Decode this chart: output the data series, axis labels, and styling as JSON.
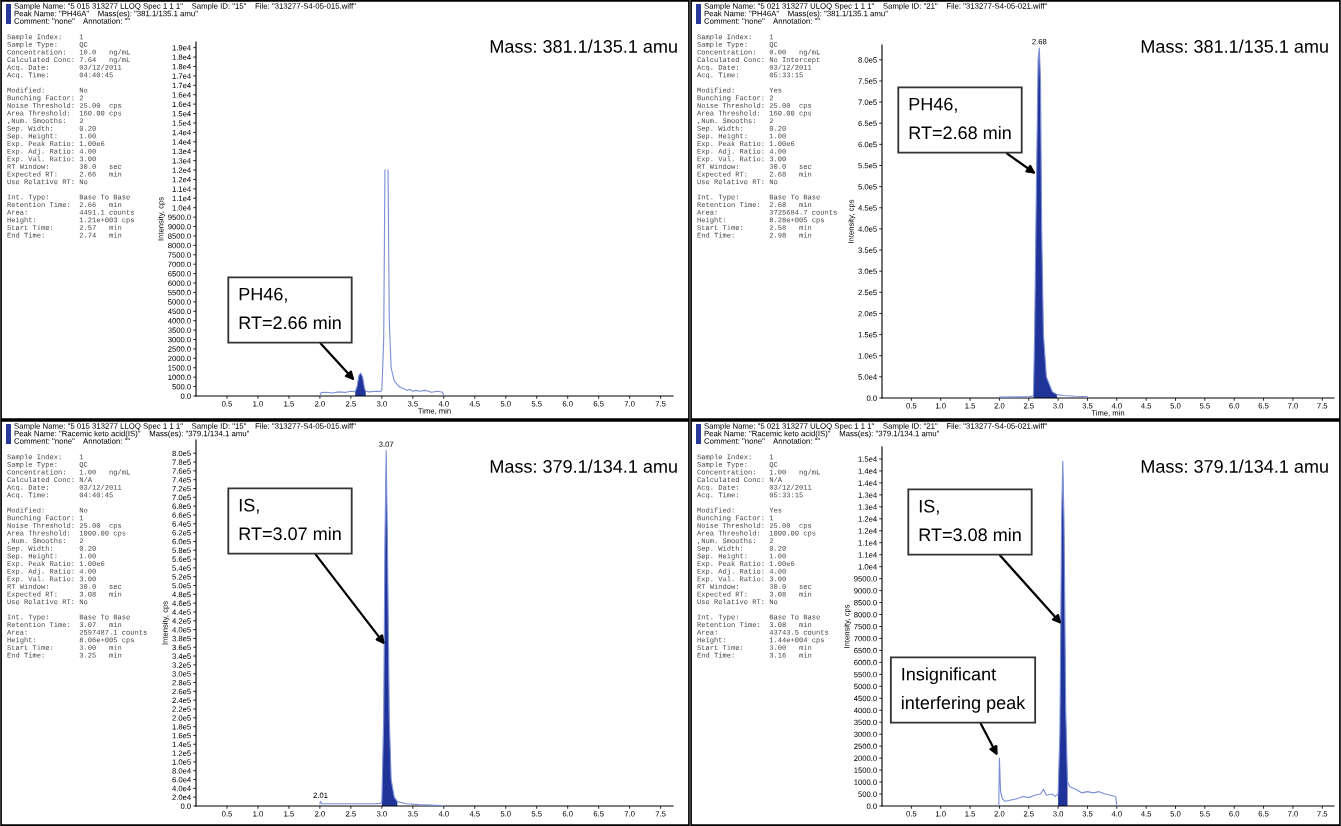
{
  "chart_data": [
    {
      "type": "line",
      "xlabel": "Time, min",
      "ylabel": "Intensity, cps",
      "xlim": [
        0,
        7.7
      ],
      "xticks": [
        {
          "value": 0.5,
          "label": "0.5"
        },
        {
          "value": 1,
          "label": "1.0"
        },
        {
          "value": 1.5,
          "label": "1.5"
        },
        {
          "value": 2,
          "label": "2.0"
        },
        {
          "value": 2.5,
          "label": "2.5"
        },
        {
          "value": 3,
          "label": "3.0"
        },
        {
          "value": 3.5,
          "label": "3.5"
        },
        {
          "value": 4,
          "label": "4.0"
        },
        {
          "value": 4.5,
          "label": "4.5"
        },
        {
          "value": 5,
          "label": "5.0"
        },
        {
          "value": 5.5,
          "label": "5.5"
        },
        {
          "value": 6,
          "label": "6.0"
        },
        {
          "value": 6.5,
          "label": "6.5"
        },
        {
          "value": 7,
          "label": "7.0"
        },
        {
          "value": 7.5,
          "label": "7.5"
        }
      ],
      "ylim": [
        0,
        18800
      ],
      "yticks": [
        {
          "value": 0,
          "label": "0.0"
        },
        {
          "value": 500,
          "label": "500.0"
        },
        {
          "value": 1000,
          "label": "1000.0"
        },
        {
          "value": 1500,
          "label": "1500.0"
        },
        {
          "value": 2000,
          "label": "2000.0"
        },
        {
          "value": 2500,
          "label": "2500.0"
        },
        {
          "value": 3000,
          "label": "3000.0"
        },
        {
          "value": 3500,
          "label": "3500.0"
        },
        {
          "value": 4000,
          "label": "4000.0"
        },
        {
          "value": 4500,
          "label": "4500.0"
        },
        {
          "value": 5000,
          "label": "5000.0"
        },
        {
          "value": 5500,
          "label": "5500.0"
        },
        {
          "value": 6000,
          "label": "6000.0"
        },
        {
          "value": 6500,
          "label": "6500.0"
        },
        {
          "value": 7000,
          "label": "7000.0"
        },
        {
          "value": 7500,
          "label": "7500.0"
        },
        {
          "value": 8000,
          "label": "8000.0"
        },
        {
          "value": 8500,
          "label": "8500.0"
        },
        {
          "value": 9000,
          "label": "9000.0"
        },
        {
          "value": 9500,
          "label": "9500.0"
        },
        {
          "value": 10000,
          "label": "1.0e4"
        },
        {
          "value": 10500,
          "label": "1.1e4"
        },
        {
          "value": 11000,
          "label": "1.1e4"
        },
        {
          "value": 11500,
          "label": "1.2e4"
        },
        {
          "value": 12000,
          "label": "1.2e4"
        },
        {
          "value": 12500,
          "label": "1.3e4"
        },
        {
          "value": 13000,
          "label": "1.3e4"
        },
        {
          "value": 13500,
          "label": "1.4e4"
        },
        {
          "value": 14000,
          "label": "1.4e4"
        },
        {
          "value": 14500,
          "label": "1.5e4"
        },
        {
          "value": 15000,
          "label": "1.5e4"
        },
        {
          "value": 15500,
          "label": "1.6e4"
        },
        {
          "value": 16000,
          "label": "1.6e4"
        },
        {
          "value": 16500,
          "label": "1.7e4"
        },
        {
          "value": 17000,
          "label": "1.7e4"
        },
        {
          "value": 17500,
          "label": "1.8e4"
        },
        {
          "value": 18000,
          "label": "1.8e4"
        },
        {
          "value": 18500,
          "label": "1.9e4"
        }
      ],
      "series": [
        {
          "type": "line",
          "color": "#7b8fd8",
          "x": [
            2.0,
            2.02,
            2.1,
            2.2,
            2.3,
            2.4,
            2.5,
            2.57,
            2.6,
            2.63,
            2.66,
            2.69,
            2.72,
            2.74,
            2.8,
            2.9,
            2.98,
            3.0,
            3.03,
            3.05,
            3.06,
            3.09,
            3.1,
            3.12,
            3.15,
            3.2,
            3.25,
            3.3,
            3.35,
            3.4,
            3.45,
            3.5,
            3.55,
            3.6,
            3.7,
            3.75,
            3.8,
            3.9,
            3.98,
            4.0
          ],
          "values": [
            0,
            180,
            200,
            160,
            220,
            190,
            250,
            230,
            500,
            1100,
            1210,
            1000,
            400,
            250,
            220,
            250,
            230,
            300,
            3000,
            12000,
            null,
            null,
            12000,
            4000,
            1500,
            800,
            600,
            450,
            400,
            300,
            350,
            250,
            300,
            250,
            300,
            250,
            200,
            250,
            200,
            0
          ]
        },
        {
          "type": "area",
          "color": "#1f3399",
          "x": [
            2.57,
            2.6,
            2.63,
            2.66,
            2.69,
            2.72,
            2.74
          ],
          "values": [
            230,
            500,
            1100,
            1210,
            1000,
            400,
            250
          ]
        }
      ],
      "annotations": [
        "Sample Name: \"5 015 313277 LLOQ Spec 1 1 1\"    Sample ID: \"15\"    File: \"313277-S4-05-015.wiff\"\nPeak Name: \"PH46A\"    Mass(es): \"381.1/135.1 amu\"\nComment: \"none\"    Annotation: \"\"",
        "Sample Index:    1\nSample Type:     QC\nConcentration:   10.0   ng/mL\nCalculated Conc: 7.64   ng/mL\nAcq. Date:       03/12/2011\nAcq. Time:       04:40:45\n\nModified:        No\nBunching Factor: 2\nNoise Threshold: 25.00  cps\nArea Threshold:  160.00 cps\n,Num. Smooths:   2\nSep. Width:      0.20\nSep. Height:     1.00\nExp. Peak Ratio: 1.00e6\nExp. Adj. Ratio: 4.00\nExp. Val. Ratio: 3.00\nRT Window:       30.0   sec\nExpected RT:     2.66   min\nUse Relative RT: No\n\nInt. Type:       Base To Base\nRetention Time:  2.66   min\nArea:            4491.1 counts\nHeight:          1.21e+003 cps\nStart Time:      2.57   min\nEnd Time:        2.74   min",
        "Mass: 381.1/135.1 amu",
        {
          "text": "PH46,\nRT=2.66 min",
          "x": 2.56,
          "y": 820
        }
      ]
    },
    {
      "type": "line",
      "xlabel": "Time, min",
      "ylabel": "Intensity, cps",
      "xlim": [
        0,
        7.7
      ],
      "xticks": [
        {
          "value": 0.5,
          "label": "0.5"
        },
        {
          "value": 1,
          "label": "1.0"
        },
        {
          "value": 1.5,
          "label": "1.5"
        },
        {
          "value": 2,
          "label": "2.0"
        },
        {
          "value": 2.5,
          "label": "2.5"
        },
        {
          "value": 3,
          "label": "3.0"
        },
        {
          "value": 3.5,
          "label": "3.5"
        },
        {
          "value": 4,
          "label": "4.0"
        },
        {
          "value": 4.5,
          "label": "4.5"
        },
        {
          "value": 5,
          "label": "5.0"
        },
        {
          "value": 5.5,
          "label": "5.5"
        },
        {
          "value": 6,
          "label": "6.0"
        },
        {
          "value": 6.5,
          "label": "6.5"
        },
        {
          "value": 7,
          "label": "7.0"
        },
        {
          "value": 7.5,
          "label": "7.5"
        }
      ],
      "ylim": [
        0,
        835000
      ],
      "yticks": [
        {
          "value": 0,
          "label": "0.0"
        },
        {
          "value": 50000,
          "label": "5.0e4"
        },
        {
          "value": 100000,
          "label": "1.0e5"
        },
        {
          "value": 150000,
          "label": "1.5e5"
        },
        {
          "value": 200000,
          "label": "2.0e5"
        },
        {
          "value": 250000,
          "label": "2.5e5"
        },
        {
          "value": 300000,
          "label": "3.0e5"
        },
        {
          "value": 350000,
          "label": "3.5e5"
        },
        {
          "value": 400000,
          "label": "4.0e5"
        },
        {
          "value": 450000,
          "label": "4.5e5"
        },
        {
          "value": 500000,
          "label": "5.0e5"
        },
        {
          "value": 550000,
          "label": "5.5e5"
        },
        {
          "value": 600000,
          "label": "6.0e5"
        },
        {
          "value": 650000,
          "label": "6.5e5"
        },
        {
          "value": 700000,
          "label": "7.0e5"
        },
        {
          "value": 750000,
          "label": "7.5e5"
        },
        {
          "value": 800000,
          "label": "8.0e5"
        }
      ],
      "series": [
        {
          "type": "line",
          "color": "#7b8fd8",
          "x": [
            2.0,
            2.5,
            2.58,
            2.6,
            2.63,
            2.66,
            2.68,
            2.7,
            2.72,
            2.75,
            2.8,
            2.9,
            2.98,
            3.1,
            3.3,
            3.5
          ],
          "values": [
            2000,
            3000,
            5000,
            150000,
            500000,
            800000,
            828000,
            750000,
            400000,
            150000,
            50000,
            15000,
            8000,
            6000,
            4000,
            3000
          ]
        },
        {
          "type": "area",
          "color": "#1f3399",
          "x": [
            2.58,
            2.6,
            2.63,
            2.66,
            2.68,
            2.7,
            2.72,
            2.75,
            2.8,
            2.9,
            2.98
          ],
          "values": [
            5000,
            150000,
            500000,
            800000,
            828000,
            750000,
            400000,
            150000,
            50000,
            15000,
            8000
          ]
        }
      ],
      "annotations": [
        "Sample Name: \"5 021 313277 ULOQ Spec 1 1 1\"    Sample ID: \"21\"    File: \"313277-S4-05-021.wiff\"\nPeak Name: \"PH46A\"    Mass(es): \"381.1/135.1 amu\"\nComment: \"none\"    Annotation: \"\"",
        "Sample Index:    1\nSample Type:     QC\nConcentration:   0.00   ng/mL\nCalculated Conc: No Intercept\nAcq. Date:       03/12/2011\nAcq. Time:       05:33:15\n\nModified:        Yes\nBunching Factor: 2\nNoise Threshold: 25.00  cps\nArea Threshold:  160.00 cps\n,Num. Smooths:   2\nSep. Width:      0.20\nSep. Height:     1.00\nExp. Peak Ratio: 1.00e6\nExp. Adj. Ratio: 4.00\nExp. Val. Ratio: 3.00\nRT Window:       30.0   sec\nExpected RT:     2.68   min\nUse Relative RT: No\n\nInt. Type:       Base To Base\nRetention Time:  2.68   min\nArea:            3725684.7 counts\nHeight:          8.28e+005 cps\nStart Time:      2.58   min\nEnd Time:        2.98   min",
        "Mass: 381.1/135.1 amu",
        {
          "text": "PH46,\nRT=2.68 min",
          "x": 2.62,
          "y": 530000
        },
        {
          "text": "2.68",
          "x": 2.68,
          "y": 828000
        }
      ]
    },
    {
      "type": "line",
      "ylabel": "Intensity, cps",
      "xlim": [
        0,
        7.7
      ],
      "xticks": [
        {
          "value": 0.5,
          "label": "0.5"
        },
        {
          "value": 1,
          "label": "1.0"
        },
        {
          "value": 1.5,
          "label": "1.5"
        },
        {
          "value": 2,
          "label": "2.0"
        },
        {
          "value": 2.5,
          "label": "2.5"
        },
        {
          "value": 3,
          "label": "3.0"
        },
        {
          "value": 3.5,
          "label": "3.5"
        },
        {
          "value": 4,
          "label": "4.0"
        },
        {
          "value": 4.5,
          "label": "4.5"
        },
        {
          "value": 5,
          "label": "5.0"
        },
        {
          "value": 5.5,
          "label": "5.5"
        },
        {
          "value": 6,
          "label": "6.0"
        },
        {
          "value": 6.5,
          "label": "6.5"
        },
        {
          "value": 7,
          "label": "7.0"
        },
        {
          "value": 7.5,
          "label": "7.5"
        }
      ],
      "ylim": [
        0,
        830000
      ],
      "yticks": [
        {
          "value": 0,
          "label": "0.0"
        },
        {
          "value": 20000,
          "label": "2.0e4"
        },
        {
          "value": 40000,
          "label": "4.0e4"
        },
        {
          "value": 60000,
          "label": "6.0e4"
        },
        {
          "value": 80000,
          "label": "8.0e4"
        },
        {
          "value": 100000,
          "label": "1.0e5"
        },
        {
          "value": 120000,
          "label": "1.2e5"
        },
        {
          "value": 140000,
          "label": "1.4e5"
        },
        {
          "value": 160000,
          "label": "1.6e5"
        },
        {
          "value": 180000,
          "label": "1.8e5"
        },
        {
          "value": 200000,
          "label": "2.0e5"
        },
        {
          "value": 220000,
          "label": "2.2e5"
        },
        {
          "value": 240000,
          "label": "2.4e5"
        },
        {
          "value": 260000,
          "label": "2.6e5"
        },
        {
          "value": 280000,
          "label": "2.8e5"
        },
        {
          "value": 300000,
          "label": "3.0e5"
        },
        {
          "value": 320000,
          "label": "3.2e5"
        },
        {
          "value": 340000,
          "label": "3.4e5"
        },
        {
          "value": 360000,
          "label": "3.6e5"
        },
        {
          "value": 380000,
          "label": "3.8e5"
        },
        {
          "value": 400000,
          "label": "4.0e5"
        },
        {
          "value": 420000,
          "label": "4.2e5"
        },
        {
          "value": 440000,
          "label": "4.4e5"
        },
        {
          "value": 460000,
          "label": "4.6e5"
        },
        {
          "value": 480000,
          "label": "4.8e5"
        },
        {
          "value": 500000,
          "label": "5.0e5"
        },
        {
          "value": 520000,
          "label": "5.2e5"
        },
        {
          "value": 540000,
          "label": "5.4e5"
        },
        {
          "value": 560000,
          "label": "5.6e5"
        },
        {
          "value": 580000,
          "label": "5.8e5"
        },
        {
          "value": 600000,
          "label": "6.0e5"
        },
        {
          "value": 620000,
          "label": "6.2e5"
        },
        {
          "value": 640000,
          "label": "6.4e5"
        },
        {
          "value": 660000,
          "label": "6.6e5"
        },
        {
          "value": 680000,
          "label": "6.8e5"
        },
        {
          "value": 700000,
          "label": "7.0e5"
        },
        {
          "value": 720000,
          "label": "7.2e5"
        },
        {
          "value": 740000,
          "label": "7.4e5"
        },
        {
          "value": 760000,
          "label": "7.6e5"
        },
        {
          "value": 780000,
          "label": "7.8e5"
        },
        {
          "value": 800000,
          "label": "8.0e5"
        }
      ],
      "series": [
        {
          "type": "line",
          "color": "#7b8fd8",
          "x": [
            2.0,
            2.01,
            2.03,
            2.5,
            2.9,
            2.98,
            3.0,
            3.03,
            3.05,
            3.07,
            3.09,
            3.12,
            3.15,
            3.2,
            3.25,
            3.4,
            3.6,
            3.8,
            4.0,
            4.01
          ],
          "values": [
            5000,
            10000,
            5000,
            5000,
            5000,
            6000,
            10000,
            200000,
            600000,
            806000,
            600000,
            200000,
            60000,
            20000,
            10000,
            5000,
            3000,
            2000,
            1000,
            0
          ]
        },
        {
          "type": "area",
          "color": "#1f3399",
          "x": [
            3.0,
            3.03,
            3.05,
            3.07,
            3.09,
            3.12,
            3.15,
            3.2,
            3.25
          ],
          "values": [
            10000,
            200000,
            600000,
            806000,
            600000,
            200000,
            60000,
            20000,
            10000
          ]
        }
      ],
      "annotations": [
        "Sample Name: \"5 015 313277 LLOQ Spec 1 1 1\"    Sample ID: \"15\"    File: \"313277-S4-05-015.wiff\"\nPeak Name: \"Racemic keto acid(IS)\"    Mass(es): \"379.1/134.1 amu\"\nComment: \"none\"    Annotation: \"\"",
        "Sample Index:    1\nSample Type:     QC\nConcentration:   1.00   ng/mL\nCalculated Conc: N/A\nAcq. Date:       03/12/2011\nAcq. Time:       04:40:45\n\nModified:        No\nBunching Factor: 1\nNoise Threshold: 25.00  cps\nArea Threshold:  1000.00 cps\n,Num. Smooths:   2\nSep. Width:      0.20\nSep. Height:     1.00\nExp. Peak Ratio: 1.00e6\nExp. Adj. Ratio: 4.00\nExp. Val. Ratio: 3.00\nRT Window:       30.0   sec\nExpected RT:     3.08   min\nUse Relative RT: No\n\nInt. Type:       Base To Base\nRetention Time:  3.07   min\nArea:            2597487.1 counts\nHeight:          8.06e+005 cps\nStart Time:      3.00   min\nEnd Time:        3.25   min",
        "Mass: 379.1/134.1 amu",
        {
          "text": "IS,\nRT=3.07 min",
          "x": 3.05,
          "y": 366000
        },
        {
          "text": "3.07",
          "x": 3.07,
          "y": 806000
        },
        {
          "text": "2.01",
          "x": 2.01,
          "y": 10000
        }
      ]
    },
    {
      "type": "line",
      "ylabel": "Intensity, cps",
      "xlim": [
        0,
        7.7
      ],
      "xticks": [
        {
          "value": 0.5,
          "label": "0.5"
        },
        {
          "value": 1,
          "label": "1.0"
        },
        {
          "value": 1.5,
          "label": "1.5"
        },
        {
          "value": 2,
          "label": "2.0"
        },
        {
          "value": 2.5,
          "label": "2.5"
        },
        {
          "value": 3,
          "label": "3.0"
        },
        {
          "value": 3.5,
          "label": "3.5"
        },
        {
          "value": 4,
          "label": "4.0"
        },
        {
          "value": 4.5,
          "label": "4.5"
        },
        {
          "value": 5,
          "label": "5.0"
        },
        {
          "value": 5.5,
          "label": "5.5"
        },
        {
          "value": 6,
          "label": "6.0"
        },
        {
          "value": 6.5,
          "label": "6.5"
        },
        {
          "value": 7,
          "label": "7.0"
        },
        {
          "value": 7.5,
          "label": "7.5"
        }
      ],
      "ylim": [
        0,
        15000
      ],
      "yticks": [
        {
          "value": 0,
          "label": "0.0"
        },
        {
          "value": 500,
          "label": "500.0"
        },
        {
          "value": 1000,
          "label": "1000.0"
        },
        {
          "value": 1500,
          "label": "1500.0"
        },
        {
          "value": 2000,
          "label": "2000.0"
        },
        {
          "value": 2500,
          "label": "2500.0"
        },
        {
          "value": 3000,
          "label": "3000.0"
        },
        {
          "value": 3500,
          "label": "3500.0"
        },
        {
          "value": 4000,
          "label": "4000.0"
        },
        {
          "value": 4500,
          "label": "4500.0"
        },
        {
          "value": 5000,
          "label": "5000.0"
        },
        {
          "value": 5500,
          "label": "5500.0"
        },
        {
          "value": 6000,
          "label": "6000.0"
        },
        {
          "value": 6500,
          "label": "6500.0"
        },
        {
          "value": 7000,
          "label": "7000.0"
        },
        {
          "value": 7500,
          "label": "7500.0"
        },
        {
          "value": 8000,
          "label": "8000.0"
        },
        {
          "value": 8500,
          "label": "8500.0"
        },
        {
          "value": 9000,
          "label": "9000.0"
        },
        {
          "value": 9500,
          "label": "9500.0"
        },
        {
          "value": 10000,
          "label": "1.0e4"
        },
        {
          "value": 10500,
          "label": "1.1e4"
        },
        {
          "value": 11000,
          "label": "1.1e4"
        },
        {
          "value": 11500,
          "label": "1.2e4"
        },
        {
          "value": 12000,
          "label": "1.2e4"
        },
        {
          "value": 12500,
          "label": "1.3e4"
        },
        {
          "value": 13000,
          "label": "1.3e4"
        },
        {
          "value": 13500,
          "label": "1.4e4"
        },
        {
          "value": 14000,
          "label": "1.4e4"
        },
        {
          "value": 14500,
          "label": "1.5e4"
        }
      ],
      "series": [
        {
          "type": "line",
          "color": "#7b8fd8",
          "x": [
            1.99,
            2.0,
            2.02,
            2.05,
            2.1,
            2.2,
            2.3,
            2.4,
            2.5,
            2.6,
            2.7,
            2.75,
            2.8,
            2.9,
            2.95,
            3.0,
            3.03,
            3.06,
            3.08,
            3.1,
            3.13,
            3.16,
            3.2,
            3.3,
            3.4,
            3.5,
            3.6,
            3.7,
            3.8,
            3.9,
            3.98,
            4.0
          ],
          "values": [
            0,
            2000,
            600,
            300,
            200,
            250,
            300,
            400,
            350,
            450,
            500,
            700,
            450,
            500,
            400,
            500,
            3000,
            12000,
            14400,
            12000,
            4000,
            1000,
            800,
            700,
            550,
            600,
            550,
            600,
            500,
            450,
            400,
            0
          ]
        },
        {
          "type": "area",
          "color": "#1f3399",
          "x": [
            3.0,
            3.03,
            3.06,
            3.08,
            3.1,
            3.13,
            3.16
          ],
          "values": [
            500,
            3000,
            12000,
            14400,
            12000,
            4000,
            1000
          ]
        }
      ],
      "annotations": [
        "Sample Name: \"5 021 313277 ULOQ Spec 1 1 1\"    Sample ID: \"21\"    File: \"313277-S4-05-021.wiff\"\nPeak Name: \"Racemic keto acid(IS)\"    Mass(es): \"379.1/134.1 amu\"\nComment: \"none\"    Annotation: \"\"",
        "Sample Index:    1\nSample Type:     QC\nConcentration:   1.00   ng/mL\nCalculated Conc: N/A\nAcq. Date:       03/12/2011\nAcq. Time:       05:33:15\n\nModified:        Yes\nBunching Factor: 1\nNoise Threshold: 25.00  cps\nArea Threshold:  1000.00 cps\n,Num. Smooths:   2\nSep. Width:      0.20\nSep. Height:     1.00\nExp. Peak Ratio: 1.00e6\nExp. Adj. Ratio: 4.00\nExp. Val. Ratio: 3.00\nRT Window:       30.0   sec\nExpected RT:     3.08   min\nUse Relative RT: No\n\nInt. Type:       Base To Base\nRetention Time:  3.08   min\nArea:            43743.5 counts\nHeight:          1.44e+004 cps\nStart Time:      3.00   min\nEnd Time:        3.16   min",
        "Mass: 379.1/134.1 amu",
        {
          "text": "IS,\nRT=3.08 min",
          "x": 3.06,
          "y": 7600
        },
        {
          "text": "Insignificant\ninterfering peak",
          "x": 1.97,
          "y": 2100
        }
      ]
    }
  ]
}
